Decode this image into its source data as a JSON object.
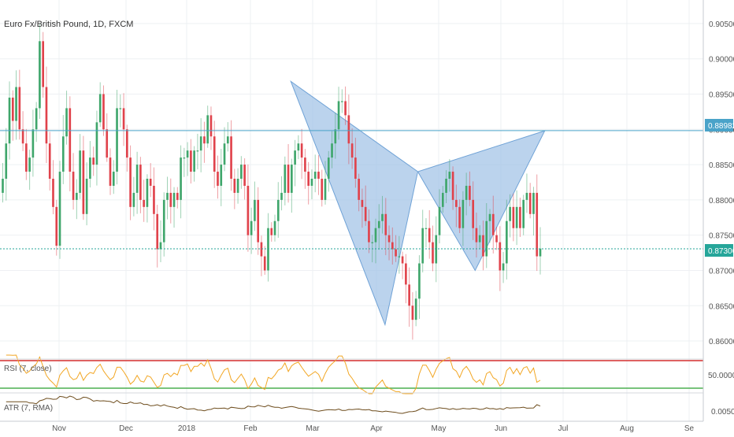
{
  "header": {
    "title": "Euro Fx/British Pound, 1D, FXCM"
  },
  "price_axis": {
    "ticks": [
      "0.90500",
      "0.90000",
      "0.89500",
      "0.89000",
      "0.88500",
      "0.88000",
      "0.87500",
      "0.87000",
      "0.86500",
      "0.86000"
    ]
  },
  "time_axis": {
    "ticks": [
      "Nov",
      "Dec",
      "2018",
      "Feb",
      "Mar",
      "Apr",
      "May",
      "Jun",
      "Jul",
      "Aug",
      "Se"
    ]
  },
  "tags": {
    "resistance": {
      "label": "0.88982",
      "color": "#4aa3c9"
    },
    "last_price": {
      "label": "0.87306",
      "color": "#26a69a"
    }
  },
  "rsi": {
    "label": "RSI (7, close)",
    "tick": "50.0000",
    "color": "#f2a623",
    "band_colors": [
      "#d32f2f",
      "#4caf50"
    ]
  },
  "atr": {
    "label": "ATR (7, RMA)",
    "tick": "0.0050",
    "color": "#6d4c1c"
  },
  "colors": {
    "up": "#3fa66b",
    "down": "#e0424b",
    "pattern_fill": "#9ec1e6",
    "pattern_stroke": "#6fa2d6",
    "grid": "#eef0f3"
  },
  "chart_data": {
    "type": "candlestick",
    "title": "Euro Fx/British Pound, 1D, FXCM",
    "ylim": [
      0.859,
      0.907
    ],
    "price_ticks": [
      0.905,
      0.9,
      0.895,
      0.89,
      0.885,
      0.88,
      0.875,
      0.87,
      0.865,
      0.86
    ],
    "horizontal_lines": [
      {
        "value": 0.88982,
        "style": "solid",
        "role": "resistance"
      },
      {
        "value": 0.87306,
        "style": "dotted",
        "role": "last-price"
      }
    ],
    "harmonic_pattern": {
      "points": [
        {
          "date": "2018-03-02",
          "price": 0.8968
        },
        {
          "date": "2018-04-17",
          "price": 0.8623
        },
        {
          "date": "2018-05-03",
          "price": 0.884
        },
        {
          "date": "2018-05-31",
          "price": 0.87
        },
        {
          "date": "2018-07-04",
          "price": 0.8898
        }
      ]
    },
    "rsi": {
      "label": "RSI (7, close)",
      "upper": 70,
      "lower": 30,
      "middle": 50
    },
    "atr": {
      "label": "ATR (7, RMA)",
      "tick": 0.005
    },
    "closes": [
      0.883,
      0.888,
      0.8945,
      0.8912,
      0.896,
      0.89,
      0.888,
      0.884,
      0.886,
      0.89,
      0.893,
      0.9025,
      0.896,
      0.888,
      0.883,
      0.879,
      0.8735,
      0.884,
      0.889,
      0.893,
      0.884,
      0.88,
      0.881,
      0.887,
      0.878,
      0.883,
      0.886,
      0.885,
      0.891,
      0.895,
      0.89,
      0.886,
      0.882,
      0.884,
      0.893,
      0.893,
      0.89,
      0.886,
      0.879,
      0.881,
      0.885,
      0.88,
      0.879,
      0.883,
      0.882,
      0.878,
      0.873,
      0.874,
      0.88,
      0.881,
      0.879,
      0.881,
      0.88,
      0.886,
      0.886,
      0.887,
      0.884,
      0.887,
      0.887,
      0.889,
      0.888,
      0.892,
      0.889,
      0.884,
      0.882,
      0.885,
      0.888,
      0.889,
      0.883,
      0.881,
      0.883,
      0.885,
      0.882,
      0.875,
      0.877,
      0.88,
      0.874,
      0.872,
      0.87,
      0.876,
      0.875,
      0.877,
      0.88,
      0.881,
      0.885,
      0.881,
      0.885,
      0.887,
      0.888,
      0.886,
      0.884,
      0.882,
      0.883,
      0.884,
      0.883,
      0.88,
      0.883,
      0.886,
      0.888,
      0.89,
      0.894,
      0.894,
      0.892,
      0.888,
      0.886,
      0.883,
      0.88,
      0.879,
      0.877,
      0.874,
      0.874,
      0.876,
      0.877,
      0.878,
      0.875,
      0.874,
      0.873,
      0.872,
      0.872,
      0.871,
      0.868,
      0.865,
      0.863,
      0.866,
      0.871,
      0.876,
      0.876,
      0.874,
      0.871,
      0.875,
      0.879,
      0.881,
      0.883,
      0.884,
      0.88,
      0.879,
      0.876,
      0.88,
      0.882,
      0.88,
      0.876,
      0.874,
      0.875,
      0.872,
      0.877,
      0.878,
      0.875,
      0.874,
      0.87,
      0.871,
      0.877,
      0.879,
      0.876,
      0.879,
      0.876,
      0.88,
      0.881,
      0.878,
      0.881,
      0.872,
      0.8731
    ]
  }
}
